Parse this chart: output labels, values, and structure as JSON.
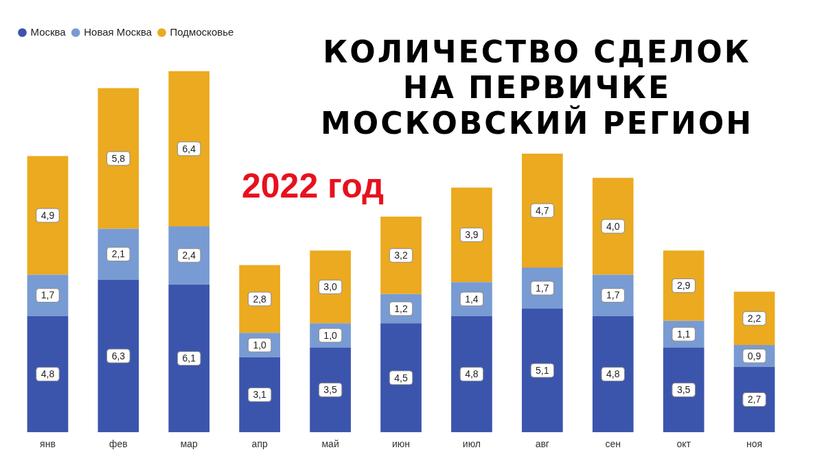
{
  "chart_data": {
    "type": "bar",
    "title": "КОЛИЧЕСТВО СДЕЛОК\nНА    ПЕРВИЧКЕ\nМОСКОВСКИЙ  РЕГИОН",
    "subtitle": "2022 год",
    "categories": [
      "янв",
      "фев",
      "мар",
      "апр",
      "май",
      "июн",
      "июл",
      "авг",
      "сен",
      "окт",
      "ноя"
    ],
    "stacked": true,
    "legend": "top left",
    "grid": false,
    "tick_labels": "x",
    "series": [
      {
        "name": "Москва",
        "color": "#3b55ad",
        "values": [
          4.8,
          6.3,
          6.1,
          3.1,
          3.5,
          4.5,
          4.8,
          5.1,
          4.8,
          3.5,
          2.7
        ],
        "value_labels": [
          "4,8",
          "6,3",
          "6,1",
          "3,1",
          "3,5",
          "4,5",
          "4,8",
          "5,1",
          "4,8",
          "3,5",
          "2,7"
        ]
      },
      {
        "name": "Новая Москва",
        "color": "#789bd3",
        "values": [
          1.7,
          2.1,
          2.4,
          1.0,
          1.0,
          1.2,
          1.4,
          1.7,
          1.7,
          1.1,
          0.9
        ],
        "value_labels": [
          "1,7",
          "2,1",
          "2,4",
          "1,0",
          "1,0",
          "1,2",
          "1,4",
          "1,7",
          "1,7",
          "1,1",
          "0,9"
        ]
      },
      {
        "name": "Подмосковье",
        "color": "#ebaa1f",
        "values": [
          4.9,
          5.8,
          6.4,
          2.8,
          3.0,
          3.2,
          3.9,
          4.7,
          4.0,
          2.9,
          2.2
        ],
        "value_labels": [
          "4,9",
          "5,8",
          "6,4",
          "2,8",
          "3,0",
          "3,2",
          "3,9",
          "4,7",
          "4,0",
          "2,9",
          "2,2"
        ]
      }
    ]
  }
}
